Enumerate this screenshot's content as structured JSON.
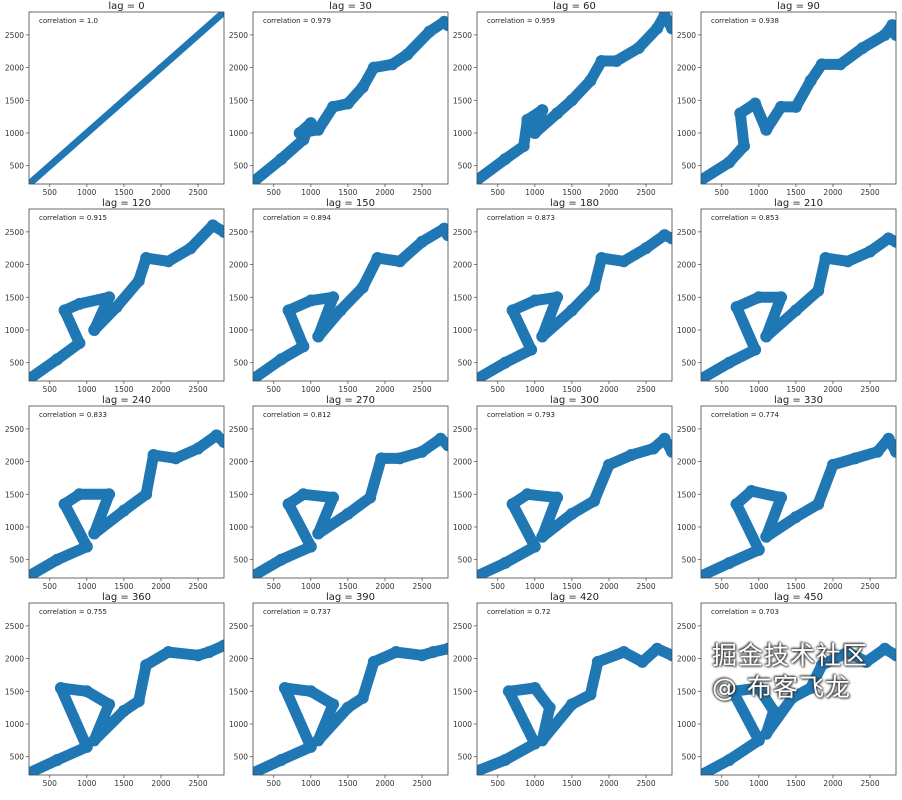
{
  "watermark": "掘金技术社区 @ 布客飞龙",
  "chart_data": {
    "type": "scatter",
    "layout": "4x4 grid of lag plots",
    "color": "#1f77b4",
    "xlim": [
      220,
      2850
    ],
    "ylim": [
      220,
      2850
    ],
    "xticks": [
      500,
      1000,
      1500,
      2000,
      2500
    ],
    "yticks": [
      500,
      1000,
      1500,
      2000,
      2500
    ],
    "grid": false,
    "subplots": [
      {
        "title": "lag = 0",
        "annotation": "correlation = 1.0",
        "points": [
          [
            220,
            220
          ],
          [
            800,
            800
          ],
          [
            1400,
            1400
          ],
          [
            2000,
            2000
          ],
          [
            2850,
            2850
          ]
        ]
      },
      {
        "title": "lag = 30",
        "annotation": "correlation = 0.979",
        "points": [
          [
            220,
            250
          ],
          [
            600,
            600
          ],
          [
            900,
            900
          ],
          [
            1000,
            1150
          ],
          [
            850,
            1000
          ],
          [
            1100,
            1050
          ],
          [
            1300,
            1400
          ],
          [
            1500,
            1450
          ],
          [
            1700,
            1700
          ],
          [
            1850,
            2000
          ],
          [
            2100,
            2050
          ],
          [
            2300,
            2200
          ],
          [
            2600,
            2550
          ],
          [
            2800,
            2700
          ],
          [
            2850,
            2650
          ]
        ]
      },
      {
        "title": "lag = 60",
        "annotation": "correlation = 0.959",
        "points": [
          [
            220,
            280
          ],
          [
            600,
            600
          ],
          [
            850,
            800
          ],
          [
            900,
            1200
          ],
          [
            1100,
            1350
          ],
          [
            1000,
            1000
          ],
          [
            1300,
            1300
          ],
          [
            1500,
            1500
          ],
          [
            1750,
            1800
          ],
          [
            1900,
            2100
          ],
          [
            2100,
            2100
          ],
          [
            2400,
            2300
          ],
          [
            2650,
            2600
          ],
          [
            2750,
            2800
          ],
          [
            2850,
            2600
          ]
        ]
      },
      {
        "title": "lag = 90",
        "annotation": "correlation = 0.938",
        "points": [
          [
            220,
            280
          ],
          [
            600,
            550
          ],
          [
            800,
            800
          ],
          [
            750,
            1300
          ],
          [
            950,
            1450
          ],
          [
            1100,
            1050
          ],
          [
            1300,
            1400
          ],
          [
            1500,
            1400
          ],
          [
            1700,
            1800
          ],
          [
            1850,
            2050
          ],
          [
            2100,
            2050
          ],
          [
            2400,
            2300
          ],
          [
            2700,
            2500
          ],
          [
            2800,
            2650
          ],
          [
            2850,
            2500
          ]
        ]
      },
      {
        "title": "lag = 120",
        "annotation": "correlation = 0.915",
        "points": [
          [
            220,
            250
          ],
          [
            600,
            550
          ],
          [
            900,
            800
          ],
          [
            700,
            1300
          ],
          [
            900,
            1400
          ],
          [
            1300,
            1500
          ],
          [
            1100,
            1000
          ],
          [
            1400,
            1350
          ],
          [
            1700,
            1750
          ],
          [
            1800,
            2100
          ],
          [
            2100,
            2050
          ],
          [
            2400,
            2250
          ],
          [
            2700,
            2600
          ],
          [
            2850,
            2500
          ]
        ]
      },
      {
        "title": "lag = 150",
        "annotation": "correlation = 0.894",
        "points": [
          [
            220,
            250
          ],
          [
            600,
            550
          ],
          [
            900,
            750
          ],
          [
            700,
            1300
          ],
          [
            1000,
            1450
          ],
          [
            1300,
            1500
          ],
          [
            1100,
            900
          ],
          [
            1400,
            1300
          ],
          [
            1700,
            1650
          ],
          [
            1900,
            2100
          ],
          [
            2200,
            2050
          ],
          [
            2500,
            2350
          ],
          [
            2800,
            2550
          ],
          [
            2850,
            2450
          ]
        ]
      },
      {
        "title": "lag = 180",
        "annotation": "correlation = 0.873",
        "points": [
          [
            220,
            250
          ],
          [
            600,
            500
          ],
          [
            950,
            700
          ],
          [
            700,
            1300
          ],
          [
            1000,
            1450
          ],
          [
            1300,
            1500
          ],
          [
            1100,
            900
          ],
          [
            1500,
            1300
          ],
          [
            1800,
            1650
          ],
          [
            1900,
            2100
          ],
          [
            2200,
            2050
          ],
          [
            2500,
            2250
          ],
          [
            2750,
            2450
          ],
          [
            2850,
            2400
          ]
        ]
      },
      {
        "title": "lag = 210",
        "annotation": "correlation = 0.853",
        "points": [
          [
            220,
            250
          ],
          [
            600,
            500
          ],
          [
            950,
            700
          ],
          [
            700,
            1350
          ],
          [
            1000,
            1500
          ],
          [
            1300,
            1500
          ],
          [
            1100,
            900
          ],
          [
            1500,
            1300
          ],
          [
            1800,
            1600
          ],
          [
            1900,
            2100
          ],
          [
            2200,
            2050
          ],
          [
            2500,
            2200
          ],
          [
            2750,
            2400
          ],
          [
            2850,
            2350
          ]
        ]
      },
      {
        "title": "lag = 240",
        "annotation": "correlation = 0.833",
        "points": [
          [
            220,
            250
          ],
          [
            600,
            500
          ],
          [
            1000,
            700
          ],
          [
            700,
            1350
          ],
          [
            900,
            1500
          ],
          [
            1300,
            1500
          ],
          [
            1100,
            900
          ],
          [
            1500,
            1250
          ],
          [
            1800,
            1500
          ],
          [
            1900,
            2100
          ],
          [
            2200,
            2050
          ],
          [
            2500,
            2200
          ],
          [
            2750,
            2400
          ],
          [
            2850,
            2300
          ]
        ]
      },
      {
        "title": "lag = 270",
        "annotation": "correlation = 0.812",
        "points": [
          [
            220,
            250
          ],
          [
            600,
            500
          ],
          [
            1000,
            700
          ],
          [
            700,
            1350
          ],
          [
            900,
            1500
          ],
          [
            1300,
            1450
          ],
          [
            1100,
            900
          ],
          [
            1500,
            1200
          ],
          [
            1800,
            1450
          ],
          [
            1950,
            2050
          ],
          [
            2200,
            2050
          ],
          [
            2500,
            2150
          ],
          [
            2750,
            2350
          ],
          [
            2850,
            2250
          ]
        ]
      },
      {
        "title": "lag = 300",
        "annotation": "correlation = 0.793",
        "points": [
          [
            220,
            250
          ],
          [
            600,
            450
          ],
          [
            1000,
            700
          ],
          [
            700,
            1350
          ],
          [
            900,
            1500
          ],
          [
            1300,
            1450
          ],
          [
            1100,
            850
          ],
          [
            1500,
            1200
          ],
          [
            1800,
            1400
          ],
          [
            2000,
            1950
          ],
          [
            2300,
            2100
          ],
          [
            2600,
            2200
          ],
          [
            2750,
            2350
          ],
          [
            2850,
            2150
          ]
        ]
      },
      {
        "title": "lag = 330",
        "annotation": "correlation = 0.774",
        "points": [
          [
            220,
            250
          ],
          [
            600,
            450
          ],
          [
            1000,
            650
          ],
          [
            700,
            1350
          ],
          [
            900,
            1550
          ],
          [
            1300,
            1450
          ],
          [
            1100,
            850
          ],
          [
            1500,
            1150
          ],
          [
            1800,
            1350
          ],
          [
            2000,
            1950
          ],
          [
            2300,
            2050
          ],
          [
            2600,
            2150
          ],
          [
            2750,
            2350
          ],
          [
            2850,
            2150
          ]
        ]
      },
      {
        "title": "lag = 360",
        "annotation": "correlation = 0.755",
        "points": [
          [
            220,
            250
          ],
          [
            600,
            450
          ],
          [
            1000,
            650
          ],
          [
            650,
            1550
          ],
          [
            1000,
            1500
          ],
          [
            1300,
            1300
          ],
          [
            1100,
            750
          ],
          [
            1500,
            1200
          ],
          [
            1700,
            1350
          ],
          [
            1800,
            1900
          ],
          [
            2100,
            2100
          ],
          [
            2500,
            2050
          ],
          [
            2650,
            2100
          ],
          [
            2850,
            2200
          ]
        ]
      },
      {
        "title": "lag = 390",
        "annotation": "correlation = 0.737",
        "points": [
          [
            220,
            250
          ],
          [
            600,
            450
          ],
          [
            1000,
            650
          ],
          [
            650,
            1550
          ],
          [
            1000,
            1500
          ],
          [
            1300,
            1300
          ],
          [
            1100,
            750
          ],
          [
            1500,
            1250
          ],
          [
            1700,
            1400
          ],
          [
            1850,
            1950
          ],
          [
            2150,
            2100
          ],
          [
            2500,
            2050
          ],
          [
            2650,
            2100
          ],
          [
            2850,
            2150
          ]
        ]
      },
      {
        "title": "lag = 420",
        "annotation": "correlation = 0.72",
        "points": [
          [
            220,
            280
          ],
          [
            600,
            450
          ],
          [
            1000,
            700
          ],
          [
            650,
            1500
          ],
          [
            1000,
            1550
          ],
          [
            1200,
            1250
          ],
          [
            1100,
            750
          ],
          [
            1500,
            1300
          ],
          [
            1750,
            1450
          ],
          [
            1850,
            1950
          ],
          [
            2200,
            2100
          ],
          [
            2450,
            1950
          ],
          [
            2650,
            2150
          ],
          [
            2850,
            2050
          ]
        ]
      },
      {
        "title": "lag = 450",
        "annotation": "correlation = 0.703",
        "points": [
          [
            220,
            220
          ],
          [
            600,
            450
          ],
          [
            1000,
            750
          ],
          [
            650,
            1500
          ],
          [
            1000,
            1550
          ],
          [
            1200,
            1200
          ],
          [
            1100,
            850
          ],
          [
            1450,
            1400
          ],
          [
            1700,
            1550
          ],
          [
            1850,
            1900
          ],
          [
            2200,
            2100
          ],
          [
            2450,
            1950
          ],
          [
            2700,
            2150
          ],
          [
            2850,
            2050
          ]
        ]
      }
    ]
  }
}
